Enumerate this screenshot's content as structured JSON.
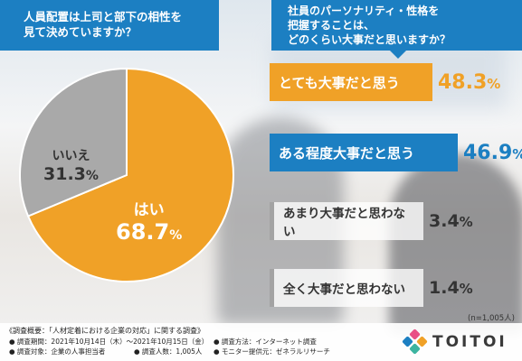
{
  "questions": {
    "left": "人員配置は上司と部下の相性を\n見て決めていますか？",
    "right": "社員のパーソナリティ・性格を\n把握することは、\nどのくらい大事だと思いますか？"
  },
  "chart_data": [
    {
      "type": "pie",
      "title": "人員配置は上司と部下の相性を見て決めていますか？",
      "slices": [
        {
          "label": "はい",
          "value": 68.7,
          "value_text": "68.7",
          "color": "#f0a127"
        },
        {
          "label": "いいえ",
          "value": 31.3,
          "value_text": "31.3",
          "color": "#a9a9a9"
        }
      ],
      "unit": "%"
    },
    {
      "type": "bar",
      "title": "社員のパーソナリティ・性格を把握することは、どのくらい大事だと思いますか？",
      "categories": [
        "とても大事だと思う",
        "ある程度大事だと思う",
        "あまり大事だと思わない",
        "全く大事だと思わない"
      ],
      "values": [
        48.3,
        46.9,
        3.4,
        1.4
      ],
      "value_texts": [
        "48.3",
        "46.9",
        "3.4",
        "1.4"
      ],
      "unit": "%",
      "colors": [
        "#f0a127",
        "#1c7fc2",
        "#a3a3a3",
        "#a3a3a3"
      ]
    }
  ],
  "pct_symbol": "%",
  "sample_note": "(n=1,005人)",
  "footer": {
    "title": "《調査概要：「人材定着における企業の対応」に関する調査》",
    "period": "● 調査期間：2021年10月14日（木）〜2021年10月15日（金）",
    "target": "● 調査対象：企業の人事担当者",
    "count": "● 調査人数：1,005人",
    "method": "● 調査方法：インターネット調査",
    "provider": "● モニター提供元：ゼネラルリサーチ"
  },
  "logo": {
    "text": "TOITOI",
    "colors": [
      "#e94f86",
      "#f0a127",
      "#3cb4a0",
      "#1c7fc2"
    ]
  }
}
